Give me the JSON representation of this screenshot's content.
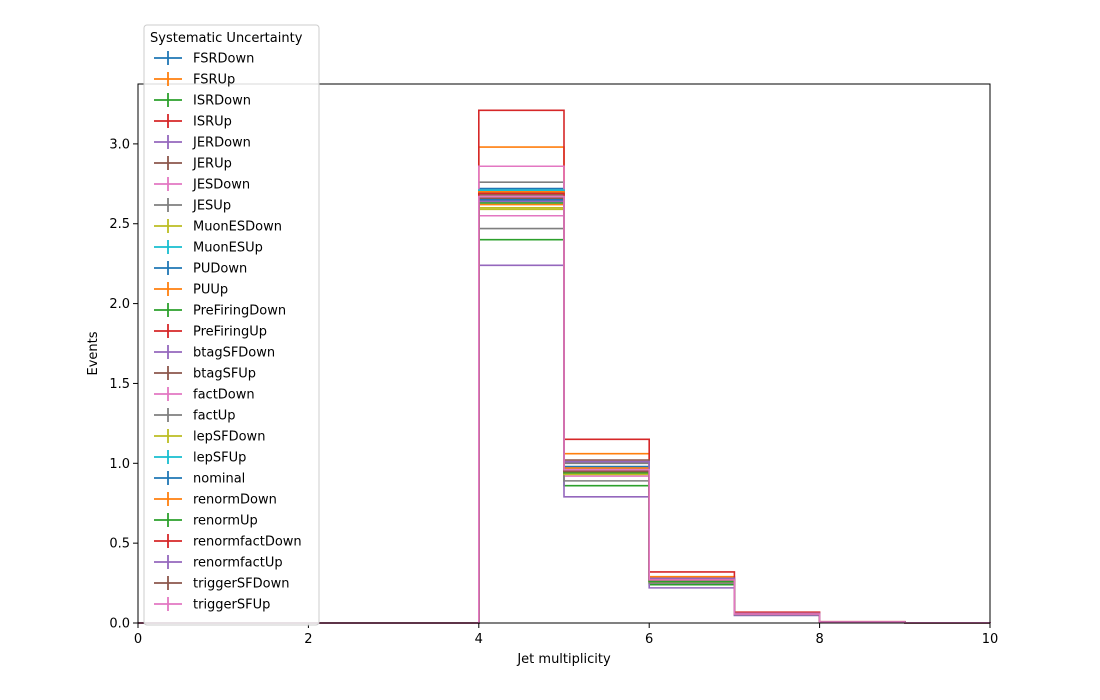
{
  "chart_data": {
    "type": "step",
    "xlabel": "Jet multiplicity",
    "ylabel": "Events",
    "xlim": [
      0,
      10
    ],
    "ylim": [
      0,
      3.375
    ],
    "xticks": [
      0,
      2,
      4,
      6,
      8,
      10
    ],
    "yticks": [
      0.0,
      0.5,
      1.0,
      1.5,
      2.0,
      2.5,
      3.0
    ],
    "xtick_labels": [
      "0",
      "2",
      "4",
      "6",
      "8",
      "10"
    ],
    "ytick_labels": [
      "0.0",
      "0.5",
      "1.0",
      "1.5",
      "2.0",
      "2.5",
      "3.0"
    ],
    "bin_edges": [
      0,
      1,
      2,
      3,
      4,
      5,
      6,
      7,
      8,
      9,
      10
    ],
    "legend_title": "Systematic Uncertainty",
    "legend_position": "upper-left, outside axes",
    "grid": false,
    "series": [
      {
        "name": "FSRDown",
        "color": "#1f77b4",
        "values": [
          0,
          0,
          0,
          0,
          2.64,
          0.95,
          0.26,
          0.055,
          0.006,
          0.001
        ]
      },
      {
        "name": "FSRUp",
        "color": "#ff7f0e",
        "values": [
          0,
          0,
          0,
          0,
          2.98,
          1.06,
          0.29,
          0.062,
          0.007,
          0.001
        ]
      },
      {
        "name": "ISRDown",
        "color": "#2ca02c",
        "values": [
          0,
          0,
          0,
          0,
          2.4,
          0.86,
          0.24,
          0.052,
          0.006,
          0.001
        ]
      },
      {
        "name": "ISRUp",
        "color": "#d62728",
        "values": [
          0,
          0,
          0,
          0,
          3.21,
          1.15,
          0.32,
          0.068,
          0.008,
          0.001
        ]
      },
      {
        "name": "JERDown",
        "color": "#9467bd",
        "values": [
          0,
          0,
          0,
          0,
          2.66,
          0.96,
          0.27,
          0.056,
          0.006,
          0.001
        ]
      },
      {
        "name": "JERUp",
        "color": "#8c564b",
        "values": [
          0,
          0,
          0,
          0,
          2.68,
          0.97,
          0.27,
          0.057,
          0.006,
          0.001
        ]
      },
      {
        "name": "JESDown",
        "color": "#e377c2",
        "values": [
          0,
          0,
          0,
          0,
          2.55,
          0.92,
          0.25,
          0.054,
          0.006,
          0.001
        ]
      },
      {
        "name": "JESUp",
        "color": "#7f7f7f",
        "values": [
          0,
          0,
          0,
          0,
          2.76,
          1.0,
          0.28,
          0.059,
          0.007,
          0.001
        ]
      },
      {
        "name": "MuonESDown",
        "color": "#bcbd22",
        "values": [
          0,
          0,
          0,
          0,
          2.6,
          0.94,
          0.26,
          0.055,
          0.006,
          0.001
        ]
      },
      {
        "name": "MuonESUp",
        "color": "#17becf",
        "values": [
          0,
          0,
          0,
          0,
          2.71,
          0.97,
          0.27,
          0.057,
          0.006,
          0.001
        ]
      },
      {
        "name": "PUDown",
        "color": "#1f77b4",
        "values": [
          0,
          0,
          0,
          0,
          2.72,
          0.98,
          0.27,
          0.057,
          0.006,
          0.001
        ]
      },
      {
        "name": "PUUp",
        "color": "#ff7f0e",
        "values": [
          0,
          0,
          0,
          0,
          2.62,
          0.94,
          0.26,
          0.055,
          0.006,
          0.001
        ]
      },
      {
        "name": "PreFiringDown",
        "color": "#2ca02c",
        "values": [
          0,
          0,
          0,
          0,
          2.69,
          0.96,
          0.27,
          0.056,
          0.006,
          0.001
        ]
      },
      {
        "name": "PreFiringUp",
        "color": "#d62728",
        "values": [
          0,
          0,
          0,
          0,
          2.7,
          0.97,
          0.27,
          0.057,
          0.006,
          0.001
        ]
      },
      {
        "name": "btagSFDown",
        "color": "#9467bd",
        "values": [
          0,
          0,
          0,
          0,
          2.24,
          0.79,
          0.22,
          0.047,
          0.005,
          0.001
        ]
      },
      {
        "name": "btagSFUp",
        "color": "#8c564b",
        "values": [
          0,
          0,
          0,
          0,
          2.65,
          1.02,
          0.28,
          0.06,
          0.007,
          0.001
        ]
      },
      {
        "name": "factDown",
        "color": "#e377c2",
        "values": [
          0,
          0,
          0,
          0,
          2.86,
          1.01,
          0.28,
          0.06,
          0.007,
          0.001
        ]
      },
      {
        "name": "factUp",
        "color": "#7f7f7f",
        "values": [
          0,
          0,
          0,
          0,
          2.47,
          0.89,
          0.25,
          0.053,
          0.006,
          0.001
        ]
      },
      {
        "name": "lepSFDown",
        "color": "#bcbd22",
        "values": [
          0,
          0,
          0,
          0,
          2.59,
          0.93,
          0.26,
          0.055,
          0.006,
          0.001
        ]
      },
      {
        "name": "lepSFUp",
        "color": "#17becf",
        "values": [
          0,
          0,
          0,
          0,
          2.71,
          0.97,
          0.27,
          0.057,
          0.006,
          0.001
        ]
      },
      {
        "name": "nominal",
        "color": "#1f77b4",
        "values": [
          0,
          0,
          0,
          0,
          2.65,
          0.96,
          0.27,
          0.056,
          0.006,
          0.001
        ]
      },
      {
        "name": "renormDown",
        "color": "#ff7f0e",
        "values": [
          0,
          0,
          0,
          0,
          2.7,
          0.97,
          0.27,
          0.057,
          0.006,
          0.001
        ]
      },
      {
        "name": "renormUp",
        "color": "#2ca02c",
        "values": [
          0,
          0,
          0,
          0,
          2.63,
          0.94,
          0.26,
          0.055,
          0.006,
          0.001
        ]
      },
      {
        "name": "renormfactDown",
        "color": "#d62728",
        "values": [
          0,
          0,
          0,
          0,
          2.69,
          0.95,
          0.27,
          0.056,
          0.006,
          0.001
        ]
      },
      {
        "name": "renormfactUp",
        "color": "#9467bd",
        "values": [
          0,
          0,
          0,
          0,
          2.64,
          1.01,
          0.28,
          0.058,
          0.007,
          0.001
        ]
      },
      {
        "name": "triggerSFDown",
        "color": "#8c564b",
        "values": [
          0,
          0,
          0,
          0,
          2.66,
          0.95,
          0.27,
          0.056,
          0.006,
          0.001
        ]
      },
      {
        "name": "triggerSFUp",
        "color": "#e377c2",
        "values": [
          0,
          0,
          0,
          0,
          2.67,
          0.96,
          0.27,
          0.056,
          0.006,
          0.001
        ]
      }
    ]
  }
}
